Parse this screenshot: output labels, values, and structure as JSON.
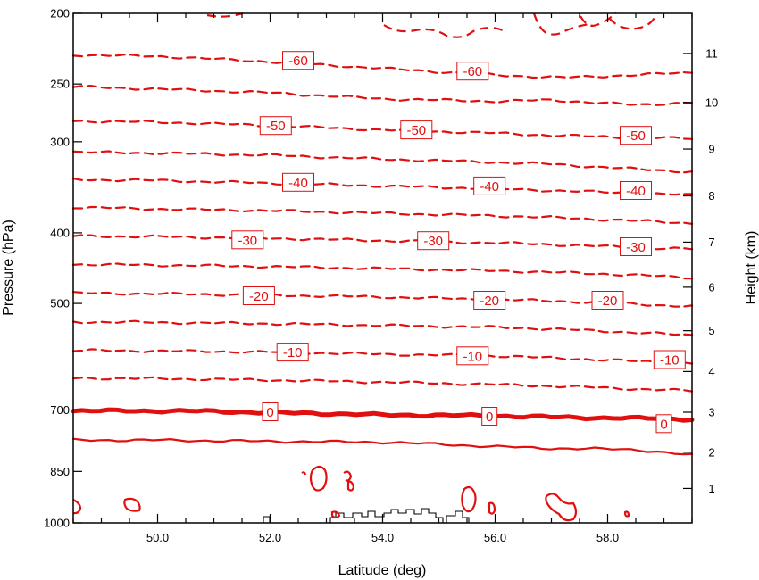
{
  "chart_data": {
    "type": "line",
    "title": "",
    "xlabel": "Latitude (deg)",
    "ylabel_left": "Pressure (hPa)",
    "ylabel_right": "Height (km)",
    "xlim": [
      48.5,
      59.5
    ],
    "ylim_pressure": [
      1000,
      200
    ],
    "y_scale": "log",
    "x_ticks": [
      {
        "value": 50,
        "label": "50.0"
      },
      {
        "value": 52,
        "label": "52.0"
      },
      {
        "value": 54,
        "label": "54.0"
      },
      {
        "value": 56,
        "label": "56.0"
      },
      {
        "value": 58,
        "label": "58.0"
      }
    ],
    "pressure_ticks": [
      {
        "value": 200,
        "label": "200"
      },
      {
        "value": 250,
        "label": "250"
      },
      {
        "value": 300,
        "label": "300"
      },
      {
        "value": 400,
        "label": "400"
      },
      {
        "value": 500,
        "label": "500"
      },
      {
        "value": 700,
        "label": "700"
      },
      {
        "value": 850,
        "label": "850"
      },
      {
        "value": 1000,
        "label": "1000"
      }
    ],
    "height_ticks": [
      {
        "km": 1,
        "pressure": 897,
        "label": "1"
      },
      {
        "km": 2,
        "pressure": 800,
        "label": "2"
      },
      {
        "km": 3,
        "pressure": 705,
        "label": "3"
      },
      {
        "km": 4,
        "pressure": 620,
        "label": "4"
      },
      {
        "km": 5,
        "pressure": 545,
        "label": "5"
      },
      {
        "km": 6,
        "pressure": 475,
        "label": "6"
      },
      {
        "km": 7,
        "pressure": 412,
        "label": "7"
      },
      {
        "km": 8,
        "pressure": 356,
        "label": "8"
      },
      {
        "km": 9,
        "pressure": 307,
        "label": "9"
      },
      {
        "km": 10,
        "pressure": 265,
        "label": "10"
      },
      {
        "km": 11,
        "pressure": 227,
        "label": "11"
      }
    ],
    "line_color": "#e01010",
    "contours": [
      {
        "level": -60,
        "style": "dashed",
        "points": [
          [
            48.5,
            228
          ],
          [
            50,
            229
          ],
          [
            52,
            233
          ],
          [
            54,
            238
          ],
          [
            56,
            243
          ],
          [
            57.2,
            245
          ],
          [
            58.5,
            243
          ],
          [
            59.5,
            241
          ]
        ]
      },
      {
        "level": -55,
        "style": "dashed",
        "points": [
          [
            48.5,
            252
          ],
          [
            50,
            254
          ],
          [
            52,
            257
          ],
          [
            54,
            262
          ],
          [
            56,
            264
          ],
          [
            57,
            263
          ],
          [
            58.5,
            267
          ],
          [
            59.5,
            265
          ]
        ]
      },
      {
        "level": -50,
        "style": "dashed",
        "points": [
          [
            48.5,
            281
          ],
          [
            50,
            282
          ],
          [
            52,
            285
          ],
          [
            54,
            289
          ],
          [
            56,
            292
          ],
          [
            57,
            294
          ],
          [
            58.5,
            296
          ],
          [
            59.5,
            297
          ]
        ]
      },
      {
        "level": -45,
        "style": "dashed",
        "points": [
          [
            48.5,
            310
          ],
          [
            50,
            311
          ],
          [
            52,
            313
          ],
          [
            54,
            317
          ],
          [
            56,
            320
          ],
          [
            57,
            322
          ],
          [
            58.5,
            327
          ],
          [
            59.5,
            330
          ]
        ]
      },
      {
        "level": -40,
        "style": "dashed",
        "points": [
          [
            48.5,
            338
          ],
          [
            50,
            339
          ],
          [
            52,
            342
          ],
          [
            54,
            345
          ],
          [
            56,
            348
          ],
          [
            57,
            350
          ],
          [
            58.5,
            353
          ],
          [
            59.5,
            355
          ]
        ]
      },
      {
        "level": -35,
        "style": "dashed",
        "points": [
          [
            48.5,
            369
          ],
          [
            50,
            371
          ],
          [
            52,
            373
          ],
          [
            54,
            376
          ],
          [
            56,
            379
          ],
          [
            57,
            381
          ],
          [
            58.5,
            385
          ],
          [
            59.5,
            388
          ]
        ]
      },
      {
        "level": -30,
        "style": "dashed",
        "points": [
          [
            48.5,
            404
          ],
          [
            50,
            405
          ],
          [
            52,
            407
          ],
          [
            54,
            410
          ],
          [
            56,
            413
          ],
          [
            57,
            415
          ],
          [
            58.5,
            419
          ],
          [
            59.5,
            421
          ]
        ]
      },
      {
        "level": -25,
        "style": "dashed",
        "points": [
          [
            48.5,
            442
          ],
          [
            50,
            443
          ],
          [
            52,
            445
          ],
          [
            54,
            448
          ],
          [
            56,
            451
          ],
          [
            57,
            453
          ],
          [
            58.5,
            457
          ],
          [
            59.5,
            461
          ]
        ]
      },
      {
        "level": -20,
        "style": "dashed",
        "points": [
          [
            48.5,
            484
          ],
          [
            50,
            485
          ],
          [
            52,
            487
          ],
          [
            54,
            490
          ],
          [
            56,
            494
          ],
          [
            57,
            496
          ],
          [
            58.5,
            501
          ],
          [
            59.5,
            505
          ]
        ]
      },
      {
        "level": -15,
        "style": "dashed",
        "points": [
          [
            48.5,
            530
          ],
          [
            50,
            531
          ],
          [
            52,
            533
          ],
          [
            54,
            536
          ],
          [
            56,
            539
          ],
          [
            57,
            542
          ],
          [
            58.5,
            548
          ],
          [
            59.5,
            553
          ]
        ]
      },
      {
        "level": -10,
        "style": "dashed",
        "points": [
          [
            48.5,
            580
          ],
          [
            50,
            581
          ],
          [
            52,
            583
          ],
          [
            54,
            587
          ],
          [
            56,
            590
          ],
          [
            57,
            594
          ],
          [
            58.5,
            600
          ],
          [
            59.5,
            604
          ]
        ]
      },
      {
        "level": -5,
        "style": "dashed",
        "points": [
          [
            48.5,
            633
          ],
          [
            50,
            634
          ],
          [
            52,
            637
          ],
          [
            54,
            641
          ],
          [
            56,
            646
          ],
          [
            57,
            649
          ],
          [
            58.5,
            655
          ],
          [
            59.5,
            659
          ]
        ]
      },
      {
        "level": 0,
        "style": "bold",
        "points": [
          [
            48.5,
            702
          ],
          [
            50,
            702
          ],
          [
            51,
            703
          ],
          [
            52,
            706
          ],
          [
            53,
            708
          ],
          [
            54,
            711
          ],
          [
            55,
            712
          ],
          [
            56,
            713
          ],
          [
            57,
            716
          ],
          [
            58,
            718
          ],
          [
            59,
            719
          ],
          [
            59.5,
            721
          ]
        ]
      },
      {
        "level": 5,
        "style": "solid",
        "points": [
          [
            48.5,
            770
          ],
          [
            50,
            770
          ],
          [
            52,
            773
          ],
          [
            54,
            775
          ],
          [
            55,
            780
          ],
          [
            56,
            786
          ],
          [
            57,
            790
          ],
          [
            58.5,
            793
          ],
          [
            59.5,
            808
          ]
        ]
      }
    ],
    "contour_labels": [
      {
        "text": "-60",
        "lat": 52.5,
        "p": 232
      },
      {
        "text": "-60",
        "lat": 55.6,
        "p": 240
      },
      {
        "text": "-50",
        "lat": 52.1,
        "p": 285
      },
      {
        "text": "-50",
        "lat": 54.6,
        "p": 289
      },
      {
        "text": "-50",
        "lat": 58.5,
        "p": 294
      },
      {
        "text": "-40",
        "lat": 52.5,
        "p": 341
      },
      {
        "text": "-40",
        "lat": 55.9,
        "p": 345
      },
      {
        "text": "-40",
        "lat": 58.5,
        "p": 350
      },
      {
        "text": "-30",
        "lat": 51.6,
        "p": 409
      },
      {
        "text": "-30",
        "lat": 54.9,
        "p": 410
      },
      {
        "text": "-30",
        "lat": 58.5,
        "p": 418
      },
      {
        "text": "-20",
        "lat": 51.8,
        "p": 488
      },
      {
        "text": "-20",
        "lat": 55.9,
        "p": 495
      },
      {
        "text": "-20",
        "lat": 58.0,
        "p": 495
      },
      {
        "text": "-10",
        "lat": 52.4,
        "p": 583
      },
      {
        "text": "-10",
        "lat": 55.6,
        "p": 590
      },
      {
        "text": "-10",
        "lat": 59.1,
        "p": 597
      },
      {
        "text": "0",
        "lat": 52.0,
        "p": 704
      },
      {
        "text": "0",
        "lat": 55.9,
        "p": 714
      },
      {
        "text": "0",
        "lat": 59.0,
        "p": 731
      }
    ]
  }
}
